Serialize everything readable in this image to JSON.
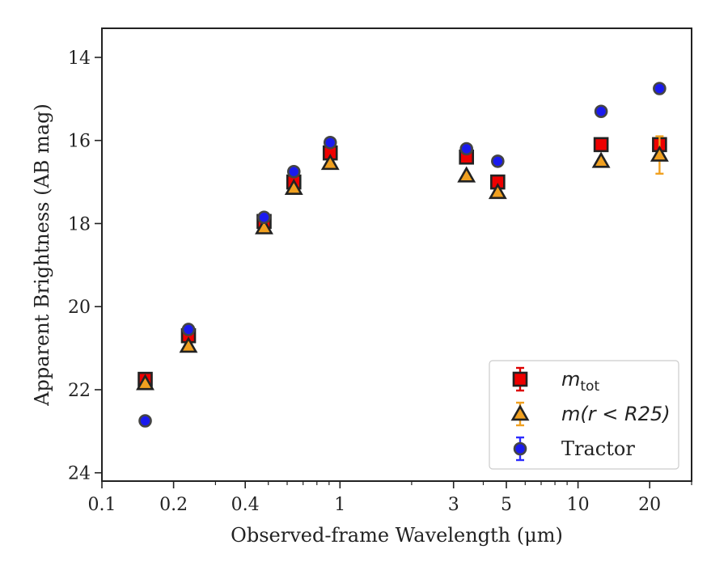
{
  "chart_data": {
    "type": "scatter",
    "xscale": "log",
    "xlim": [
      0.1,
      30
    ],
    "ylim": [
      24.2,
      13.3
    ],
    "y_inverted": true,
    "xlabel": "Observed-frame Wavelength (μm)",
    "ylabel": "Apparent Brightness (AB mag)",
    "x_ticks": [
      {
        "value": 0.1,
        "label": "0.1"
      },
      {
        "value": 0.2,
        "label": "0.2"
      },
      {
        "value": 0.4,
        "label": "0.4"
      },
      {
        "value": 1,
        "label": "1"
      },
      {
        "value": 3,
        "label": "3"
      },
      {
        "value": 5,
        "label": "5"
      },
      {
        "value": 10,
        "label": "10"
      },
      {
        "value": 20,
        "label": "20"
      }
    ],
    "y_ticks": [
      {
        "value": 14,
        "label": "14"
      },
      {
        "value": 16,
        "label": "16"
      },
      {
        "value": 18,
        "label": "18"
      },
      {
        "value": 20,
        "label": "20"
      },
      {
        "value": 22,
        "label": "22"
      },
      {
        "value": 24,
        "label": "24"
      }
    ],
    "legend": {
      "position": "lower-right",
      "entries": [
        {
          "series": "mtot",
          "base": "m",
          "sub": "tot",
          "text": ""
        },
        {
          "series": "mr25",
          "base": "m",
          "sub": "",
          "text": "(r < R25)"
        },
        {
          "series": "tractor",
          "base": "",
          "sub": "",
          "text": "Tractor"
        }
      ]
    },
    "series": [
      {
        "id": "mtot",
        "marker": "square",
        "color": "#ee0000",
        "errcolor": "#dd0000",
        "x": [
          0.152,
          0.231,
          0.48,
          0.64,
          0.91,
          3.4,
          4.6,
          12.5,
          22
        ],
        "y": [
          21.75,
          20.7,
          17.95,
          17.0,
          16.3,
          16.4,
          17.0,
          16.1,
          16.1
        ],
        "yerr": [
          0.12,
          0.12,
          0.08,
          0.1,
          0.08,
          0.08,
          0.08,
          0.06,
          0.15
        ]
      },
      {
        "id": "mr25",
        "marker": "triangle",
        "color": "#f0a020",
        "errcolor": "#f0a020",
        "x": [
          0.152,
          0.231,
          0.48,
          0.64,
          0.91,
          3.4,
          4.6,
          12.5,
          22
        ],
        "y": [
          21.85,
          20.95,
          18.1,
          17.15,
          16.55,
          16.85,
          17.25,
          16.5,
          16.35
        ],
        "yerr": [
          0.05,
          0.05,
          0.05,
          0.05,
          0.05,
          0.05,
          0.05,
          0.05,
          0.45
        ]
      },
      {
        "id": "tractor",
        "marker": "circle",
        "color": "#1a1aee",
        "errcolor": "#2b2bff",
        "x": [
          0.152,
          0.231,
          0.48,
          0.64,
          0.91,
          3.4,
          4.6,
          12.5,
          22
        ],
        "y": [
          22.75,
          20.55,
          17.85,
          16.75,
          16.05,
          16.2,
          16.5,
          15.3,
          14.75
        ],
        "yerr": [
          0.05,
          0.05,
          0.05,
          0.05,
          0.05,
          0.05,
          0.05,
          0.05,
          0.05
        ]
      }
    ]
  }
}
